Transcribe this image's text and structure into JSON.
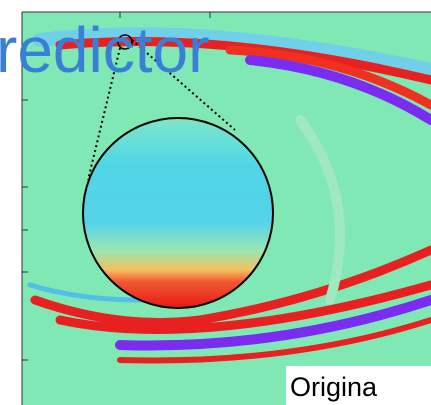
{
  "title": "redictor",
  "label": "Origina"
}
